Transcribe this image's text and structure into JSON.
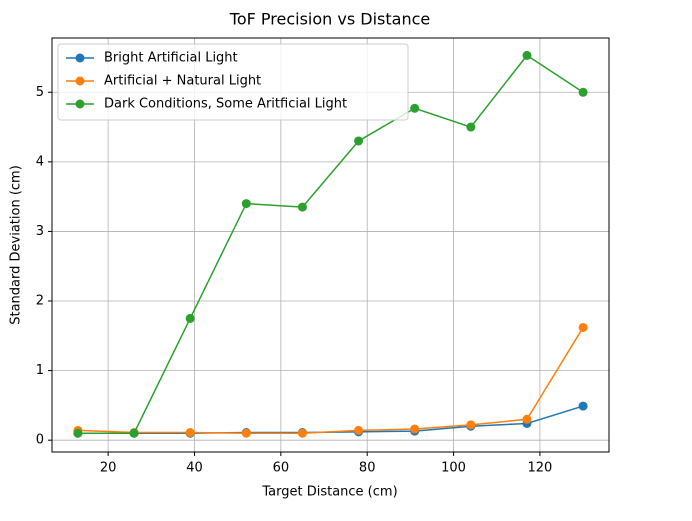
{
  "chart_data": {
    "type": "line",
    "title": "ToF Precision vs Distance",
    "xlabel": "Target Distance (cm)",
    "ylabel": "Standard Deviation (cm)",
    "x": [
      13,
      26,
      39,
      52,
      65,
      78,
      91,
      104,
      117,
      130
    ],
    "series": [
      {
        "name": "Bright Artificial Light",
        "color": "#1f77b4",
        "values": [
          0.1,
          0.1,
          0.1,
          0.11,
          0.11,
          0.12,
          0.13,
          0.2,
          0.24,
          0.49
        ]
      },
      {
        "name": "Artificial + Natural Light",
        "color": "#ff7f0e",
        "values": [
          0.14,
          0.11,
          0.11,
          0.1,
          0.1,
          0.14,
          0.16,
          0.22,
          0.3,
          1.62
        ]
      },
      {
        "name": "Dark Conditions, Some Aritficial Light",
        "color": "#2ca02c",
        "values": [
          0.1,
          0.1,
          1.75,
          3.4,
          3.35,
          4.3,
          4.77,
          4.5,
          5.53,
          5.0
        ]
      }
    ],
    "xlim": [
      7,
      136
    ],
    "ylim": [
      -0.17,
      5.78
    ],
    "xticks": [
      20,
      40,
      60,
      80,
      100,
      120
    ],
    "yticks": [
      0,
      1,
      2,
      3,
      4,
      5
    ],
    "grid": true,
    "legend": "upper-left"
  }
}
